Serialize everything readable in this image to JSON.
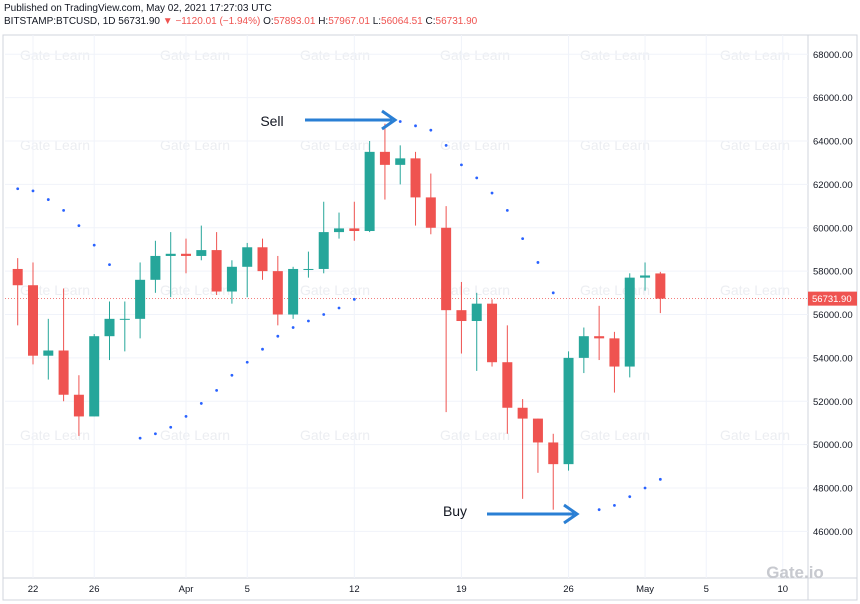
{
  "header": {
    "published": "Published on TradingView.com, May 02, 2021 17:27:03 UTC",
    "symbol": "BITSTAMP:BTCUSD, 1D",
    "last": "56731.90",
    "change": "▼ −1120.01 (−1.94%)",
    "o_label": "O:",
    "o": "57893.01",
    "h_label": "H:",
    "h": "57967.01",
    "l_label": "L:",
    "l": "56064.51",
    "c_label": "C:",
    "c": "56731.90"
  },
  "chart_data": {
    "type": "candlestick",
    "up_color": "#26a69a",
    "down_color": "#ef5350",
    "grid": true,
    "x": [
      0,
      1,
      2,
      3,
      4,
      5,
      6,
      7,
      8,
      9,
      10,
      11,
      12,
      13,
      14,
      15,
      16,
      17,
      18,
      19,
      20,
      21,
      22,
      23,
      24,
      25,
      26,
      27,
      28,
      29,
      30,
      31,
      32,
      33,
      34,
      35,
      36,
      37,
      38,
      39,
      40,
      41,
      42
    ],
    "open": [
      58100,
      57350,
      54100,
      54340,
      52300,
      51300,
      55000,
      55800,
      55800,
      57600,
      58700,
      58800,
      58700,
      58970,
      57060,
      58200,
      59100,
      58000,
      56000,
      58100,
      58100,
      59800,
      59970,
      59850,
      63500,
      62900,
      63200,
      61400,
      60000,
      56200,
      55700,
      56500,
      53800,
      51700,
      51200,
      50100,
      49100,
      54000,
      55000,
      54900,
      53600,
      57700,
      57893.01
    ],
    "high": [
      58600,
      58400,
      55800,
      57200,
      53200,
      55100,
      56600,
      56600,
      58400,
      59400,
      59800,
      59500,
      60100,
      59800,
      58500,
      59300,
      59500,
      58700,
      58200,
      58900,
      61200,
      60700,
      61200,
      64000,
      64800,
      63800,
      63500,
      62500,
      61000,
      57500,
      57000,
      56700,
      55500,
      52100,
      51200,
      50500,
      54300,
      55400,
      56400,
      55200,
      57900,
      58400,
      57967.01
    ],
    "low": [
      55500,
      53700,
      53000,
      52000,
      50400,
      51300,
      53900,
      54300,
      54900,
      57000,
      56800,
      57900,
      58500,
      56900,
      56500,
      56800,
      57600,
      55500,
      55800,
      57700,
      57900,
      59500,
      59400,
      59800,
      61300,
      62000,
      60100,
      59700,
      51500,
      54200,
      53400,
      53600,
      50500,
      47500,
      48700,
      47000,
      48800,
      53300,
      53900,
      52400,
      53100,
      57100,
      56064.51
    ],
    "close": [
      57350,
      54100,
      54340,
      52300,
      51300,
      55000,
      55800,
      55800,
      57600,
      58700,
      58800,
      58700,
      58970,
      57060,
      58200,
      59100,
      58000,
      56000,
      58100,
      58100,
      59800,
      59970,
      59850,
      63500,
      62900,
      63200,
      61400,
      60000,
      56200,
      55700,
      56500,
      53800,
      51700,
      51200,
      50100,
      49100,
      54000,
      55000,
      54900,
      53600,
      57700,
      57800,
      56731.9
    ],
    "sar": {
      "color": "#2962ff",
      "values": [
        61800,
        61700,
        61300,
        60800,
        60100,
        59200,
        58300,
        null,
        50300,
        50500,
        50800,
        51300,
        51900,
        52500,
        53200,
        53800,
        54400,
        55000,
        55400,
        55700,
        56000,
        56300,
        56700,
        null,
        null,
        64900,
        64700,
        64500,
        63800,
        62900,
        62300,
        61600,
        60800,
        59500,
        58400,
        57000,
        null,
        null,
        47000,
        47200,
        47600,
        48000,
        48400
      ]
    },
    "last_price": {
      "value": 56731.9,
      "label": "56731.90"
    },
    "xlim": [
      -0.83,
      51.65
    ],
    "xticks": [
      {
        "value": 1,
        "label": "22"
      },
      {
        "value": 5,
        "label": "26"
      },
      {
        "value": 11,
        "label": "Apr"
      },
      {
        "value": 15,
        "label": "5"
      },
      {
        "value": 22,
        "label": "12"
      },
      {
        "value": 29,
        "label": "19"
      },
      {
        "value": 36,
        "label": "26"
      },
      {
        "value": 41,
        "label": "May"
      },
      {
        "value": 45,
        "label": "5"
      },
      {
        "value": 50,
        "label": "10"
      }
    ],
    "ylim": [
      43850,
      68750
    ],
    "yticks": [
      {
        "value": 46000,
        "label": "46000.00"
      },
      {
        "value": 48000,
        "label": "48000.00"
      },
      {
        "value": 50000,
        "label": "50000.00"
      },
      {
        "value": 52000,
        "label": "52000.00"
      },
      {
        "value": 54000,
        "label": "54000.00"
      },
      {
        "value": 56000,
        "label": "56000.00"
      },
      {
        "value": 58000,
        "label": "58000.00"
      },
      {
        "value": 60000,
        "label": "60000.00"
      },
      {
        "value": 62000,
        "label": "62000.00"
      },
      {
        "value": 64000,
        "label": "64000.00"
      },
      {
        "value": 66000,
        "label": "66000.00"
      },
      {
        "value": 68000,
        "label": "68000.00"
      }
    ],
    "annotations": {
      "sell": "Sell",
      "buy": "Buy"
    },
    "watermark": "Gate Learn",
    "logo": "Gate.io"
  }
}
